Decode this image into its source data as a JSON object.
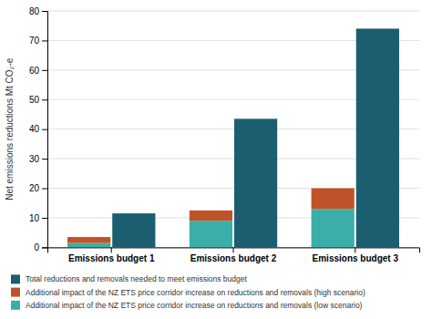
{
  "chart_data": {
    "type": "bar",
    "categories": [
      "Emissions budget 1",
      "Emissions budget 2",
      "Emissions budget 3"
    ],
    "series": [
      {
        "name": "Total reductions and removals needed to meet emissions budget",
        "color": "#1b5e70",
        "values": [
          11.5,
          43.5,
          74.0
        ]
      },
      {
        "name": "Additional impact of the NZ ETS price corridor increase on reductions and removals (high scenario)",
        "color": "#c0522a",
        "values": [
          2.0,
          3.5,
          7.0
        ],
        "stacked": true
      },
      {
        "name": "Additional impact of the NZ ETS price corridor increase on reductions and removals (low scenario)",
        "color": "#3aafa9",
        "values": [
          1.5,
          9.0,
          13.0
        ],
        "stacked": true
      }
    ],
    "ylabel": "Net emissions reductions Mt CO₂-e",
    "ylim": [
      0,
      80
    ],
    "yticks": [
      0,
      10,
      20,
      30,
      40,
      50,
      60,
      70,
      80
    ],
    "grid": true,
    "legend": "bottom"
  }
}
